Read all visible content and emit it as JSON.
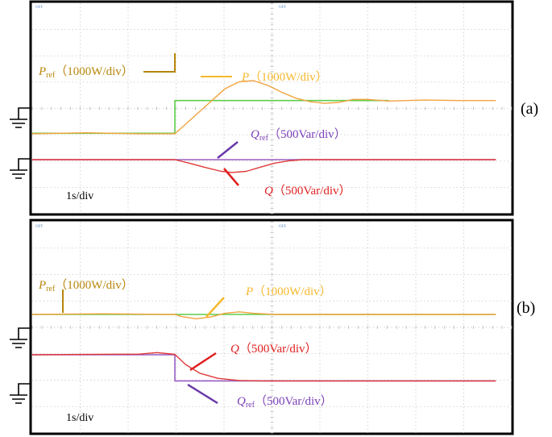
{
  "chart_data": [
    {
      "type": "line",
      "panel_label": "(a)",
      "time_scale_label": "1s/div",
      "x_unit": "div",
      "grid": true,
      "top_marker": "OFF",
      "series": [
        {
          "name": "P_ref",
          "label_main": "P",
          "label_sub": "ref",
          "label_scale": "（1000W/div）",
          "color": "#5fce4a",
          "points": [
            [
              0,
              -1.7
            ],
            [
              4,
              -1.7
            ],
            [
              4,
              -0.3
            ],
            [
              10,
              -0.3
            ]
          ]
        },
        {
          "name": "P",
          "label_main": "P",
          "label_sub": "",
          "label_scale": "（1000W/div）",
          "color": "#f1a340",
          "points": [
            [
              0,
              -1.72
            ],
            [
              1.5,
              -1.68
            ],
            [
              3,
              -1.72
            ],
            [
              4,
              -1.72
            ],
            [
              4.2,
              -1.45
            ],
            [
              4.6,
              -0.9
            ],
            [
              5,
              -0.35
            ],
            [
              5.4,
              0.2
            ],
            [
              5.8,
              0.5
            ],
            [
              6.2,
              0.55
            ],
            [
              6.6,
              0.35
            ],
            [
              7,
              0.05
            ],
            [
              7.4,
              -0.2
            ],
            [
              7.8,
              -0.35
            ],
            [
              8.2,
              -0.42
            ],
            [
              8.6,
              -0.38
            ],
            [
              9,
              -0.25
            ],
            [
              9.4,
              -0.25
            ],
            [
              10,
              -0.32
            ],
            [
              11,
              -0.28
            ],
            [
              12,
              -0.3
            ],
            [
              13,
              -0.3
            ]
          ]
        },
        {
          "name": "Q_ref",
          "label_main": "Q",
          "label_sub": "ref",
          "label_scale": "（500Var/div）",
          "color": "#9a5fc4",
          "points": [
            [
              0,
              0
            ],
            [
              13,
              0
            ]
          ]
        },
        {
          "name": "Q",
          "label_main": "Q",
          "label_sub": "",
          "label_scale": "（500Var/div）",
          "color": "#e03a3a",
          "points": [
            [
              0,
              0
            ],
            [
              4,
              0
            ],
            [
              4.4,
              -0.15
            ],
            [
              4.9,
              -0.35
            ],
            [
              5.3,
              -0.5
            ],
            [
              5.6,
              -0.55
            ],
            [
              6,
              -0.5
            ],
            [
              6.4,
              -0.32
            ],
            [
              6.8,
              -0.15
            ],
            [
              7.2,
              -0.05
            ],
            [
              7.6,
              0
            ],
            [
              13,
              0
            ]
          ]
        }
      ]
    },
    {
      "type": "line",
      "panel_label": "(b)",
      "time_scale_label": "1s/div",
      "x_unit": "div",
      "grid": true,
      "top_marker": "OFF",
      "series": [
        {
          "name": "P_ref",
          "label_main": "P",
          "label_sub": "ref",
          "label_scale": "（1000W/div）",
          "color": "#5fce4a",
          "points": [
            [
              0,
              0
            ],
            [
              13,
              0
            ]
          ]
        },
        {
          "name": "P",
          "label_main": "P",
          "label_sub": "",
          "label_scale": "（1000W/div）",
          "color": "#f1a340",
          "points": [
            [
              0,
              0
            ],
            [
              2,
              0.03
            ],
            [
              3.8,
              0
            ],
            [
              4,
              0
            ],
            [
              4.2,
              -0.1
            ],
            [
              4.6,
              -0.2
            ],
            [
              5,
              -0.12
            ],
            [
              5.4,
              0.05
            ],
            [
              5.8,
              0.12
            ],
            [
              6.2,
              0.05
            ],
            [
              6.8,
              0
            ],
            [
              13,
              0
            ]
          ]
        },
        {
          "name": "Q_ref",
          "label_main": "Q",
          "label_sub": "ref",
          "label_scale": "（500Var/div）",
          "color": "#9a5fc4",
          "points": [
            [
              0,
              0
            ],
            [
              4,
              0
            ],
            [
              4,
              -1.2
            ],
            [
              13,
              -1.2
            ]
          ]
        },
        {
          "name": "Q",
          "label_main": "Q",
          "label_sub": "",
          "label_scale": "（500Var/div）",
          "color": "#e03a3a",
          "points": [
            [
              0,
              0
            ],
            [
              3,
              0.03
            ],
            [
              3.5,
              0.1
            ],
            [
              4,
              0.02
            ],
            [
              4.3,
              -0.45
            ],
            [
              4.7,
              -0.85
            ],
            [
              5.2,
              -1.08
            ],
            [
              5.8,
              -1.18
            ],
            [
              6.5,
              -1.2
            ],
            [
              13,
              -1.2
            ]
          ]
        }
      ]
    }
  ]
}
